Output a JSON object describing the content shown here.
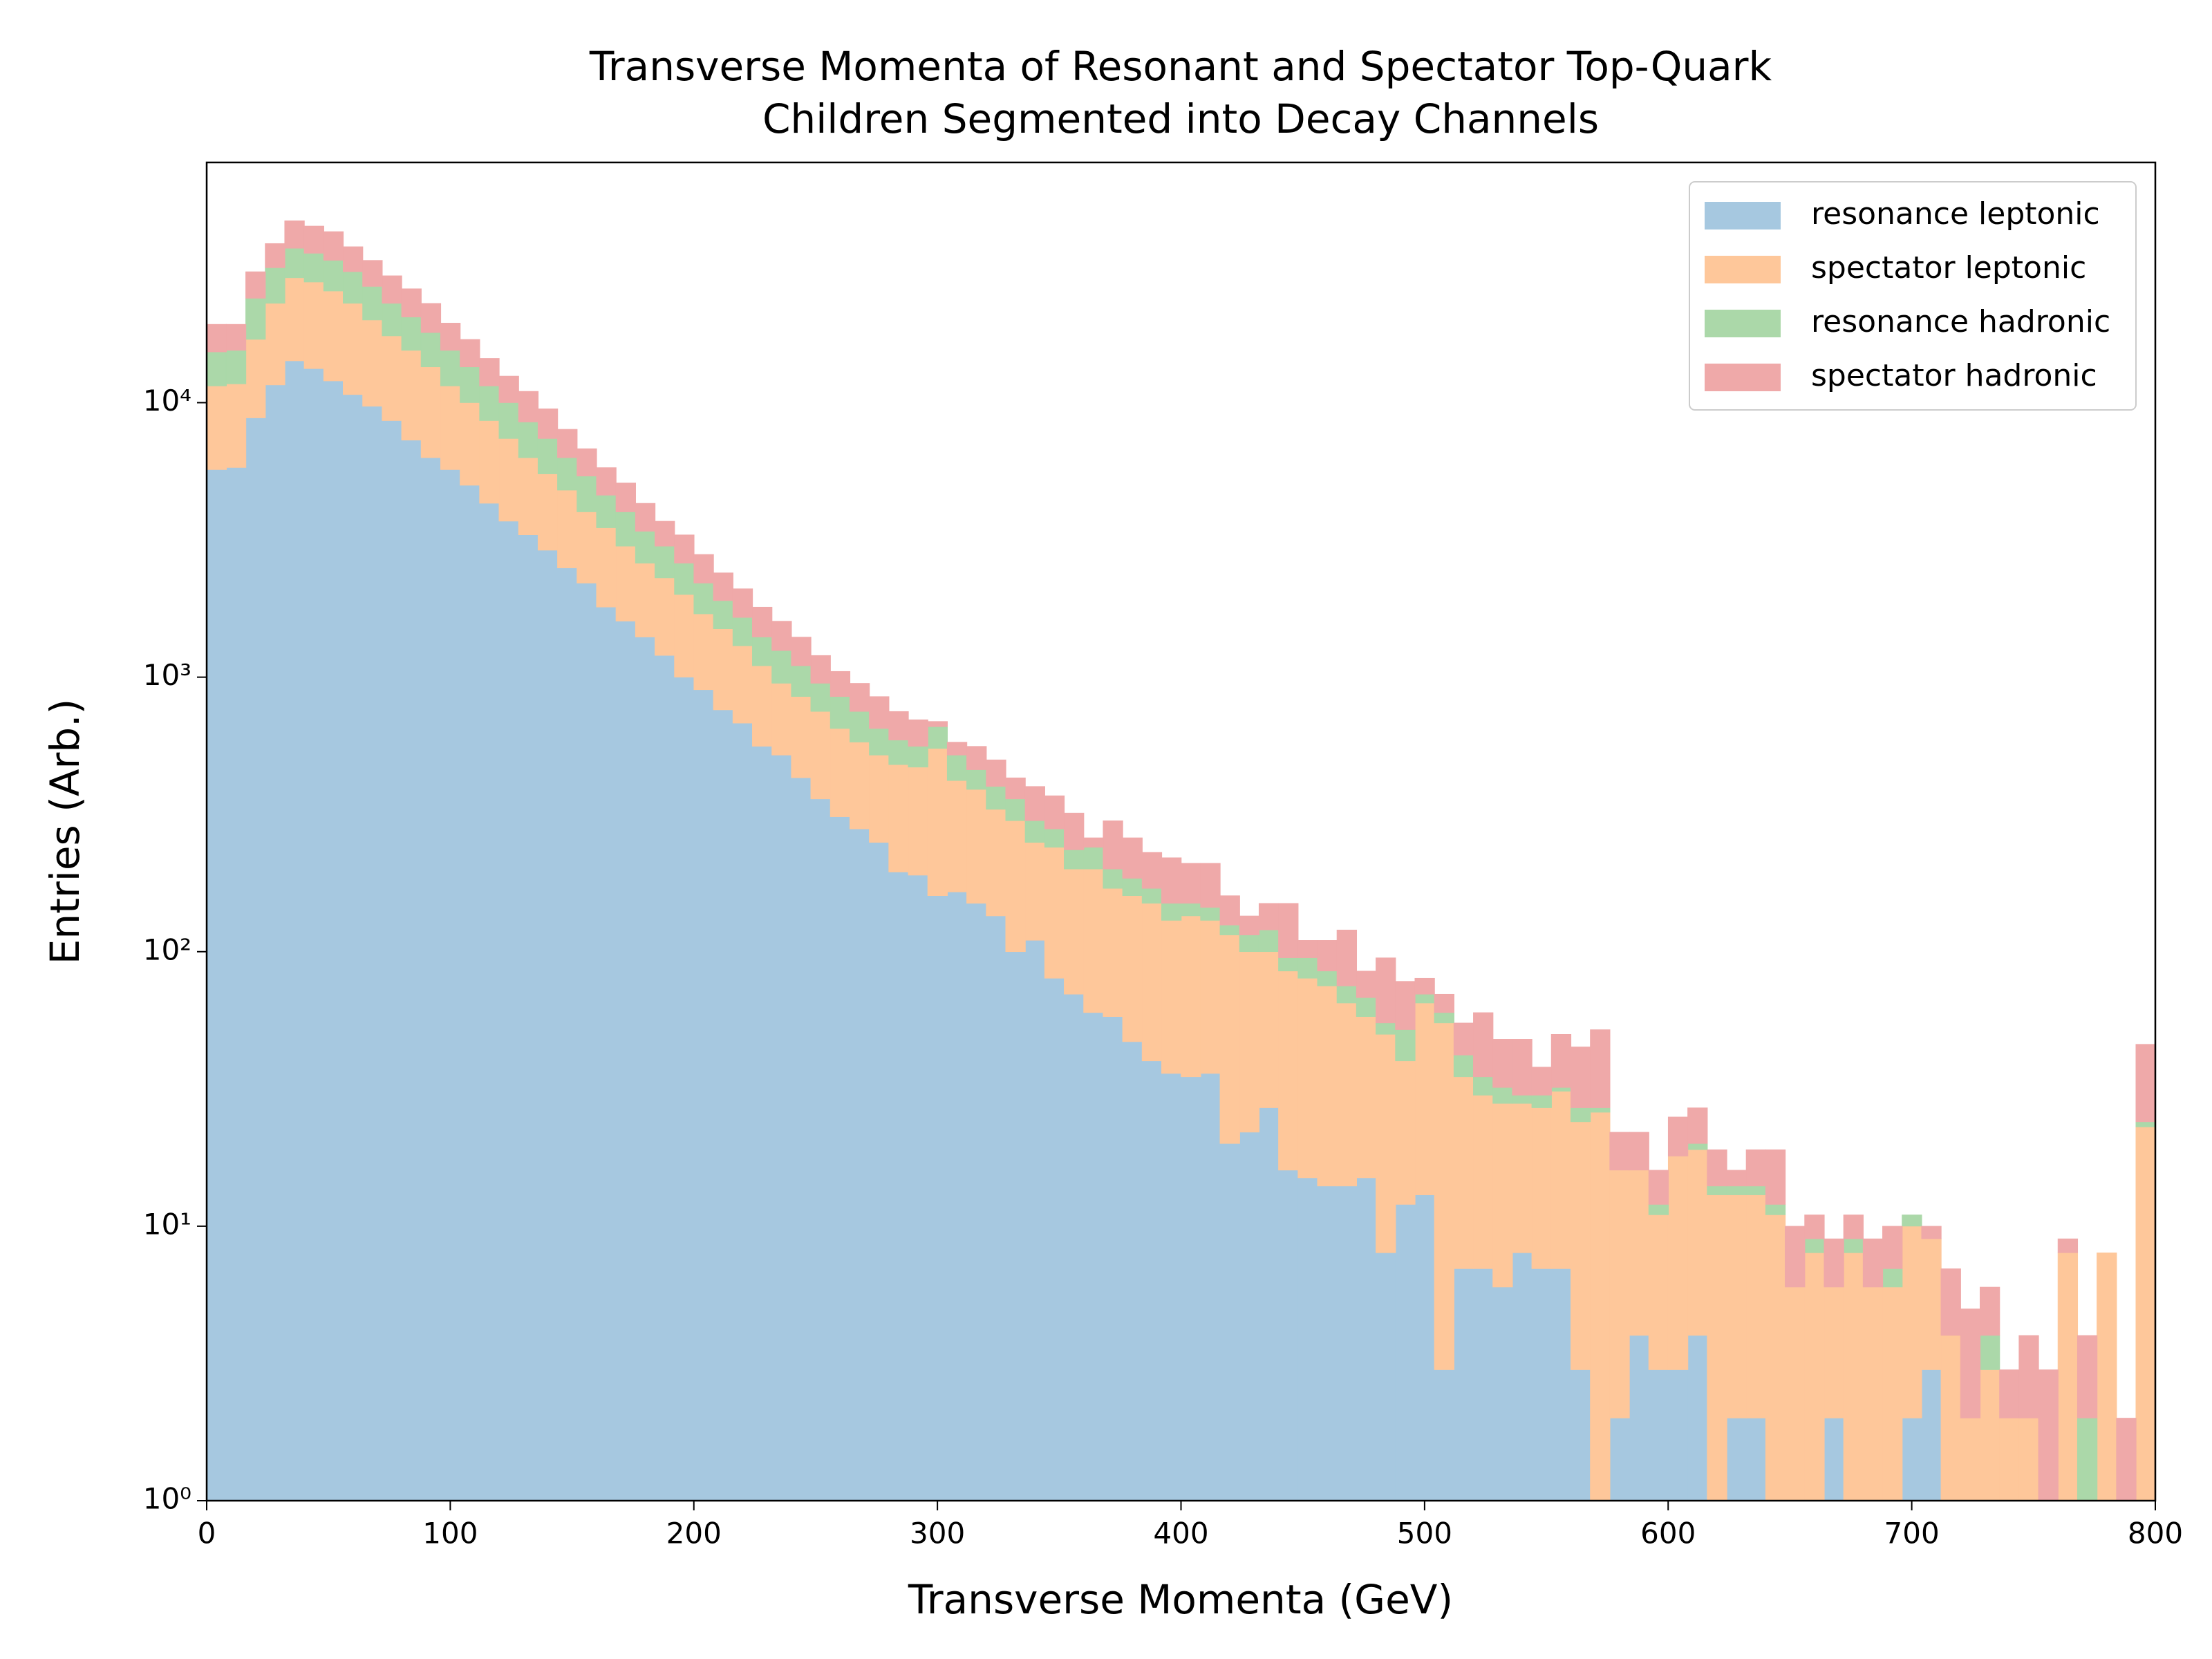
{
  "chart_data": {
    "type": "histogram",
    "stacked": true,
    "title": [
      "Transverse Momenta of Resonant and Spectator Top-Quark",
      "Children Segmented into Decay Channels"
    ],
    "x_label": "Transverse Momenta (GeV)",
    "y_label": "Entries (Arb.)",
    "log_y": true,
    "legend": "upper right",
    "xlim": [
      0,
      800
    ],
    "ylim": [
      1,
      75000
    ],
    "xticks": [
      0,
      100,
      200,
      300,
      400,
      500,
      600,
      700,
      800
    ],
    "yticks": [
      {
        "value": 1,
        "label": "10⁰"
      },
      {
        "value": 10,
        "label": "10¹"
      },
      {
        "value": 100,
        "label": "10²"
      },
      {
        "value": 1000,
        "label": "10³"
      },
      {
        "value": 10000,
        "label": "10⁴"
      }
    ],
    "bins": [
      0,
      8,
      16,
      24,
      32,
      40,
      48,
      56,
      64,
      72,
      80,
      88,
      96,
      104,
      112,
      120,
      128,
      136,
      144,
      152,
      160,
      168,
      176,
      184,
      192,
      200,
      208,
      216,
      224,
      232,
      240,
      248,
      256,
      264,
      272,
      280,
      288,
      296,
      304,
      312,
      320,
      328,
      336,
      344,
      352,
      360,
      368,
      376,
      384,
      392,
      400,
      408,
      416,
      424,
      432,
      440,
      448,
      456,
      464,
      472,
      480,
      488,
      496,
      504,
      512,
      520,
      528,
      536,
      544,
      552,
      560,
      568,
      576,
      584,
      592,
      600,
      608,
      616,
      624,
      632,
      640,
      648,
      656,
      664,
      672,
      680,
      688,
      696,
      704,
      712,
      720,
      728,
      736,
      744,
      752,
      760,
      768,
      776,
      784,
      792,
      800
    ],
    "series": [
      {
        "name": "resonance leptonic",
        "color": "#a6c8e0",
        "values": [
          5700,
          5800,
          8800,
          11600,
          14200,
          13300,
          12000,
          10700,
          9700,
          8600,
          7300,
          6300,
          5700,
          5000,
          4300,
          3700,
          3300,
          2900,
          2500,
          2200,
          1800,
          1600,
          1400,
          1200,
          1000,
          900,
          760,
          680,
          560,
          520,
          430,
          360,
          310,
          280,
          250,
          195,
          190,
          160,
          165,
          150,
          135,
          100,
          110,
          80,
          70,
          60,
          58,
          47,
          40,
          36,
          35,
          36,
          20,
          22,
          27,
          16,
          15,
          14,
          14,
          15,
          8,
          12,
          13,
          3,
          7,
          7,
          6,
          8,
          7,
          7,
          3,
          0,
          2,
          4,
          3,
          3,
          4,
          0,
          2,
          2,
          0,
          0,
          0,
          2,
          0,
          0,
          0,
          2,
          3,
          0,
          0,
          0,
          0,
          0,
          0,
          0,
          0,
          0,
          0,
          0
        ]
      },
      {
        "name": "spectator leptonic",
        "color": "#fec79a",
        "values": [
          5800,
          5900,
          8200,
          11400,
          14300,
          14200,
          13500,
          12300,
          10300,
          8900,
          8200,
          7200,
          5800,
          5000,
          4300,
          3700,
          3000,
          2600,
          2300,
          1800,
          1700,
          1400,
          1200,
          1100,
          1000,
          800,
          740,
          620,
          540,
          430,
          420,
          390,
          340,
          300,
          270,
          285,
          280,
          390,
          255,
          240,
          195,
          200,
          140,
          160,
          130,
          140,
          112,
          113,
          110,
          94,
          100,
          94,
          95,
          78,
          73,
          69,
          65,
          61,
          51,
          43,
          42,
          28,
          52,
          52,
          28,
          23,
          22,
          20,
          20,
          24,
          21,
          26,
          14,
          12,
          8,
          15,
          15,
          13,
          11,
          11,
          11,
          6,
          8,
          4,
          8,
          6,
          6,
          8,
          6,
          4,
          2,
          3,
          2,
          2,
          0,
          8,
          0,
          8,
          0,
          23
        ]
      },
      {
        "name": "resonance hadronic",
        "color": "#abd8a9",
        "values": [
          3800,
          3800,
          7000,
          8000,
          8000,
          7500,
          7500,
          7000,
          6500,
          5500,
          5000,
          4500,
          4000,
          3500,
          2900,
          2600,
          2200,
          1900,
          1500,
          1400,
          1100,
          1000,
          800,
          700,
          600,
          500,
          400,
          350,
          300,
          300,
          250,
          200,
          200,
          170,
          130,
          110,
          90,
          110,
          100,
          70,
          70,
          60,
          50,
          40,
          35,
          40,
          30,
          25,
          20,
          20,
          15,
          15,
          10,
          15,
          20,
          10,
          15,
          10,
          10,
          10,
          5,
          12,
          5,
          5,
          7,
          5,
          4,
          2,
          3,
          1,
          3,
          1,
          0,
          0,
          1,
          0,
          1,
          1,
          1,
          1,
          1,
          0,
          1,
          0,
          1,
          0,
          1,
          1,
          0,
          0,
          0,
          1,
          0,
          0,
          0,
          0,
          2,
          0,
          0,
          1
        ]
      },
      {
        "name": "spectator hadronic",
        "color": "#efa9a9",
        "values": [
          4000,
          3800,
          6000,
          7000,
          9500,
          9000,
          9000,
          7000,
          6500,
          6000,
          5500,
          5000,
          4000,
          3500,
          3000,
          2500,
          2500,
          2100,
          1700,
          1400,
          1200,
          1100,
          900,
          700,
          700,
          600,
          500,
          450,
          400,
          350,
          300,
          250,
          200,
          200,
          200,
          160,
          140,
          30,
          60,
          100,
          100,
          70,
          100,
          90,
          85,
          20,
          100,
          75,
          60,
          70,
          60,
          65,
          35,
          20,
          30,
          55,
          15,
          25,
          45,
          17,
          40,
          26,
          10,
          10,
          13,
          25,
          16,
          18,
          8,
          18,
          18,
          25,
          6,
          6,
          4,
          7,
          7,
          5,
          2,
          5,
          7,
          4,
          2,
          3,
          2,
          3,
          3,
          0,
          1,
          3,
          3,
          2,
          1,
          2,
          3,
          1,
          2,
          0,
          2,
          22
        ]
      }
    ]
  }
}
